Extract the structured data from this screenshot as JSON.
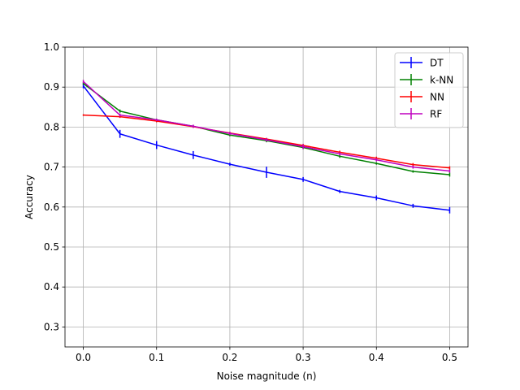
{
  "chart_data": {
    "type": "line",
    "xlabel": "Noise magnitude (n)",
    "ylabel": "Accuracy",
    "xlim": [
      -0.025,
      0.525
    ],
    "ylim": [
      0.25,
      1.0
    ],
    "x_ticks": [
      0.0,
      0.1,
      0.2,
      0.3,
      0.4,
      0.5
    ],
    "x_tick_labels": [
      "0.0",
      "0.1",
      "0.2",
      "0.3",
      "0.4",
      "0.5"
    ],
    "y_ticks": [
      0.3,
      0.4,
      0.5,
      0.6,
      0.7,
      0.8,
      0.9,
      1.0
    ],
    "y_tick_labels": [
      "0.3",
      "0.4",
      "0.5",
      "0.6",
      "0.7",
      "0.8",
      "0.9",
      "1.0"
    ],
    "grid": true,
    "legend_position": "top-right",
    "x": [
      0.0,
      0.05,
      0.1,
      0.15,
      0.2,
      0.25,
      0.3,
      0.35,
      0.4,
      0.45,
      0.5
    ],
    "series": [
      {
        "name": "DT",
        "color": "#0000ff",
        "values": [
          0.903,
          0.783,
          0.755,
          0.73,
          0.707,
          0.687,
          0.669,
          0.639,
          0.623,
          0.603,
          0.592
        ],
        "errors": [
          0.006,
          0.01,
          0.01,
          0.01,
          0.004,
          0.014,
          0.006,
          0.004,
          0.006,
          0.005,
          0.008
        ]
      },
      {
        "name": "k-NN",
        "color": "#008000",
        "values": [
          0.909,
          0.84,
          0.818,
          0.802,
          0.78,
          0.766,
          0.749,
          0.727,
          0.709,
          0.689,
          0.681
        ],
        "errors": [
          0.003,
          0.004,
          0.003,
          0.003,
          0.003,
          0.004,
          0.004,
          0.004,
          0.003,
          0.003,
          0.005
        ]
      },
      {
        "name": "NN",
        "color": "#ff0000",
        "values": [
          0.83,
          0.826,
          0.815,
          0.801,
          0.785,
          0.77,
          0.754,
          0.737,
          0.722,
          0.706,
          0.698
        ],
        "errors": [
          0.002,
          0.003,
          0.003,
          0.003,
          0.003,
          0.003,
          0.004,
          0.004,
          0.004,
          0.004,
          0.004
        ]
      },
      {
        "name": "RF",
        "color": "#bf00bf",
        "values": [
          0.914,
          0.83,
          0.818,
          0.802,
          0.784,
          0.768,
          0.751,
          0.733,
          0.718,
          0.7,
          0.69
        ],
        "errors": [
          0.004,
          0.004,
          0.003,
          0.004,
          0.004,
          0.004,
          0.006,
          0.004,
          0.004,
          0.004,
          0.004
        ]
      }
    ]
  }
}
